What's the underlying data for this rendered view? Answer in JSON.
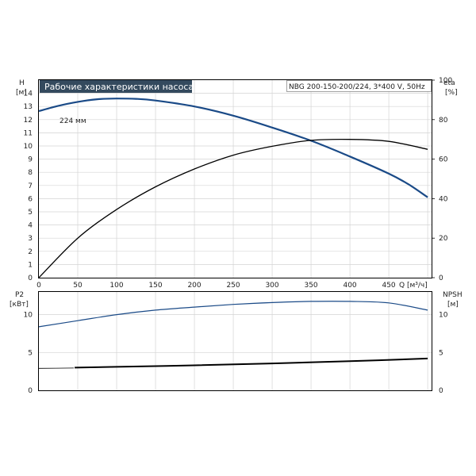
{
  "title": "Рабочие характеристики насоса",
  "subtitle": "NBG 200-150-200/224, 3*400 V, 50Hz",
  "chart_data": [
    {
      "type": "line",
      "panel": "head-efficiency",
      "x_label": "Q [м³/ч]",
      "x_ticks": [
        0,
        50,
        100,
        150,
        200,
        250,
        300,
        350,
        400,
        450
      ],
      "xlim": [
        0,
        505
      ],
      "left_axis": {
        "label_top": "H",
        "label_unit": "[м]",
        "ticks": [
          0,
          1,
          2,
          3,
          4,
          5,
          6,
          7,
          8,
          9,
          10,
          11,
          12,
          13,
          14
        ],
        "ylim": [
          0,
          15
        ]
      },
      "right_axis": {
        "label_top": "eta",
        "label_unit": "[%]",
        "ticks": [
          0,
          20,
          40,
          60,
          80,
          100
        ],
        "ylim": [
          0,
          100
        ]
      },
      "grid": true,
      "annotation": "224 мм",
      "series": [
        {
          "name": "224 мм",
          "axis": "left",
          "color": "#1a4a87",
          "x": [
            0,
            25,
            50,
            75,
            100,
            125,
            150,
            200,
            250,
            300,
            350,
            400,
            450,
            475,
            500
          ],
          "y": [
            12.65,
            13.05,
            13.35,
            13.55,
            13.6,
            13.58,
            13.45,
            13.0,
            12.3,
            11.4,
            10.4,
            9.2,
            7.9,
            7.1,
            6.1
          ]
        },
        {
          "axis": "right",
          "color": "#000000",
          "x": [
            0,
            50,
            100,
            150,
            200,
            250,
            300,
            350,
            400,
            450,
            500
          ],
          "y": [
            0,
            20,
            34.5,
            46,
            55,
            62,
            66.5,
            69.5,
            70,
            69,
            65
          ]
        }
      ]
    },
    {
      "type": "line",
      "panel": "power-npsh",
      "left_axis": {
        "label_top": "P2",
        "label_unit": "[кВт]",
        "ticks": [
          0,
          5,
          10
        ],
        "ylim": [
          0,
          13
        ]
      },
      "right_axis": {
        "label_top": "NPSH",
        "label_unit": "[м]",
        "ticks": [
          0,
          5,
          10
        ],
        "ylim": [
          0,
          13
        ]
      },
      "xlim": [
        0,
        505
      ],
      "grid": true,
      "series": [
        {
          "axis": "left",
          "color": "#1a4a87",
          "x": [
            0,
            50,
            100,
            150,
            200,
            250,
            300,
            350,
            400,
            450,
            500
          ],
          "y": [
            8.4,
            9.2,
            10.0,
            10.6,
            11.0,
            11.35,
            11.6,
            11.75,
            11.75,
            11.55,
            10.6
          ]
        },
        {
          "axis": "right",
          "color": "#000000",
          "x": [
            0,
            45,
            46,
            100,
            200,
            300,
            400,
            500
          ],
          "y": [
            2.9,
            2.95,
            3.0,
            3.1,
            3.3,
            3.55,
            3.85,
            4.2
          ]
        }
      ]
    }
  ]
}
